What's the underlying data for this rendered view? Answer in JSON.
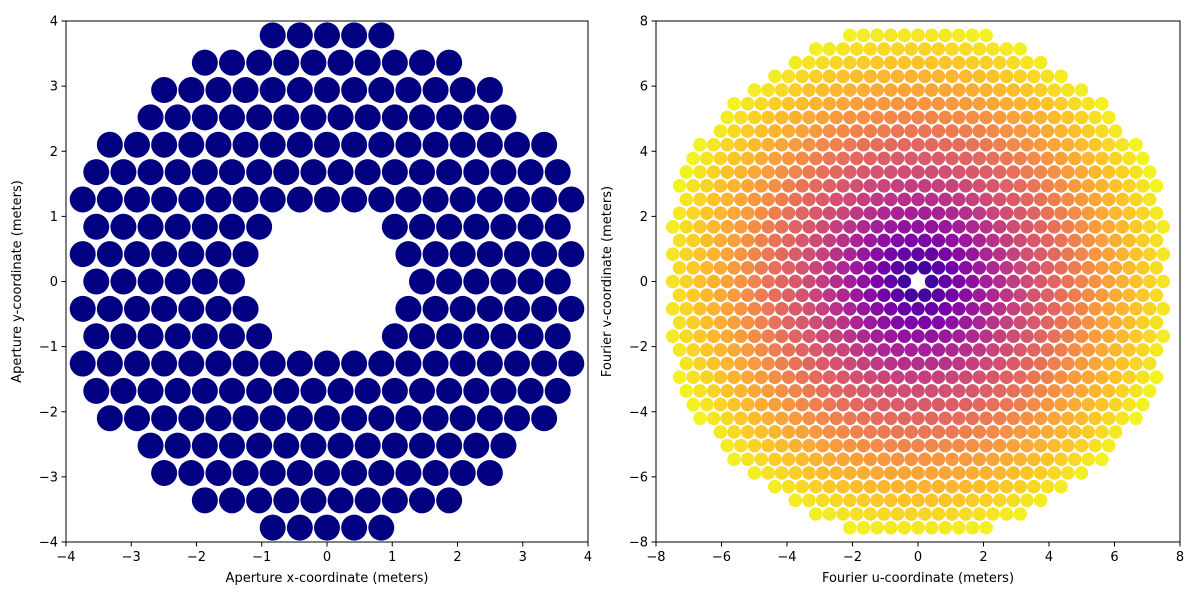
{
  "chart_data": [
    {
      "type": "scatter",
      "title": "",
      "xlabel": "Aperture x-coordinate (meters)",
      "ylabel": "Aperture y-coordinate (meters)",
      "xlim": [
        -4,
        4
      ],
      "ylim": [
        -4,
        4
      ],
      "xticks": [
        -4,
        -3,
        -2,
        -1,
        0,
        1,
        2,
        3,
        4
      ],
      "yticks": [
        -4,
        -3,
        -2,
        -1,
        0,
        1,
        2,
        3,
        4
      ],
      "grid": false,
      "marker_color": "#000080",
      "grid_spacing_x": 0.416,
      "grid_spacing_y": 0.42,
      "outer_radius": 4.0,
      "inner_hole_radius": 1.1,
      "description": "hexagonal array of equal-size circular segments forming an annular aperture"
    },
    {
      "type": "scatter",
      "title": "",
      "xlabel": "Fourier u-coordinate (meters)",
      "ylabel": "Fourier v-coordinate (meters)",
      "xlim": [
        -8,
        8
      ],
      "ylim": [
        -8,
        8
      ],
      "xticks": [
        -8,
        -6,
        -4,
        -2,
        0,
        2,
        4,
        6,
        8
      ],
      "yticks": [
        -8,
        -6,
        -4,
        -2,
        0,
        2,
        4,
        6,
        8
      ],
      "grid": false,
      "colormap": "plasma",
      "color_by": "radial distance (u,v)",
      "grid_spacing_u": 0.416,
      "grid_spacing_v": 0.42,
      "outer_radius": 8.0,
      "description": "uv-plane coverage of baselines; inner points dark purple, outer points yellow; origin empty"
    }
  ]
}
